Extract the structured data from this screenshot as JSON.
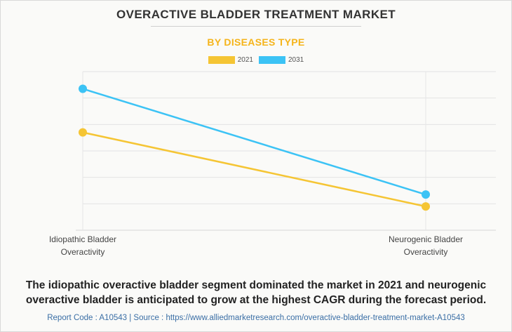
{
  "title": "OVERACTIVE BLADDER TREATMENT MARKET",
  "subtitle": "BY DISEASES TYPE",
  "colors": {
    "accent": "#f5b41a",
    "s2021": "#f5c534",
    "s2031": "#3cc3f5",
    "grid": "#e3e3e3"
  },
  "chart_data": {
    "type": "line",
    "title": "OVERACTIVE BLADDER TREATMENT MARKET",
    "subtitle": "BY DISEASES TYPE",
    "categories": [
      "Idiopathic Bladder\nOveractivity",
      "Neurogenic Bladder\nOveractivity"
    ],
    "series": [
      {
        "name": "2021",
        "values": [
          3.7,
          0.9
        ]
      },
      {
        "name": "2031",
        "values": [
          5.35,
          1.35
        ]
      }
    ],
    "ylim": [
      0,
      6
    ],
    "xlabel": "",
    "ylabel": "",
    "grid": true,
    "legend": "top-center",
    "unit_note": "values estimated from gridlines; axis not labeled"
  },
  "caption": "The idiopathic overactive bladder segment dominated the market in 2021 and neurogenic overactive bladder is anticipated to grow at the highest CAGR during the forecast period.",
  "footer": "Report Code : A10543  |  Source : https://www.alliedmarketresearch.com/overactive-bladder-treatment-market-A10543"
}
